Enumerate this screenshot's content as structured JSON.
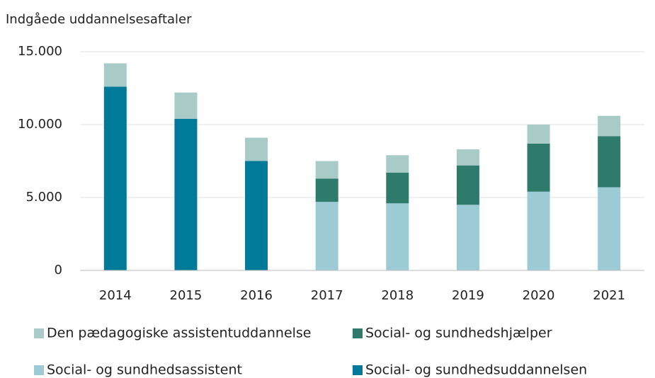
{
  "chart_data": {
    "type": "stacked_bar",
    "title": "Indgåede uddannelsesaftaler",
    "categories": [
      "2014",
      "2015",
      "2016",
      "2017",
      "2018",
      "2019",
      "2020",
      "2021"
    ],
    "series": [
      {
        "name": "Den pædagogiske assistentuddannelse",
        "color": "#a9cbc8",
        "values": [
          1600,
          1800,
          1600,
          1200,
          1200,
          1100,
          1300,
          1400
        ]
      },
      {
        "name": "Social- og sundhedshjælper",
        "color": "#2e7a6b",
        "values": [
          null,
          null,
          null,
          1600,
          2100,
          2700,
          3300,
          3500
        ]
      },
      {
        "name": "Social- og sundhedsassistent",
        "color": "#9ccbd6",
        "values": [
          null,
          null,
          null,
          4700,
          4600,
          4500,
          5400,
          5700
        ]
      },
      {
        "name": "Social- og sundhedsuddannelsen",
        "color": "#007a99",
        "values": [
          12600,
          10400,
          7500,
          null,
          null,
          null,
          null,
          null
        ]
      }
    ],
    "ylim": [
      0,
      15000
    ],
    "yticks": [
      0,
      {
        "value": 5000,
        "label": "5.000"
      },
      {
        "value": 10000,
        "label": "10.000"
      },
      {
        "value": 15000,
        "label": "15.000"
      }
    ],
    "grid": true,
    "legend": "bottom"
  }
}
